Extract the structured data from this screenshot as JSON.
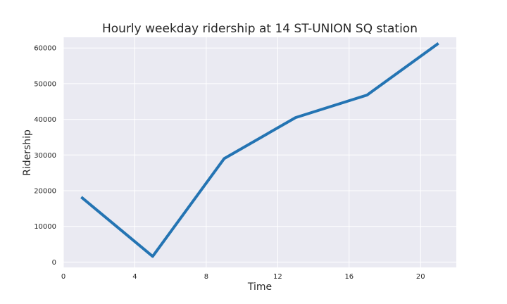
{
  "chart_data": {
    "type": "line",
    "title": "Hourly weekday ridership at 14 ST-UNION SQ station",
    "xlabel": "Time",
    "ylabel": "Ridership",
    "xlim": [
      0,
      22
    ],
    "ylim": [
      -1500,
      63000
    ],
    "xticks": [
      0,
      4,
      8,
      12,
      16,
      20
    ],
    "yticks": [
      0,
      10000,
      20000,
      30000,
      40000,
      50000,
      60000
    ],
    "grid": true,
    "series": [
      {
        "x": [
          1,
          5,
          9,
          13,
          17,
          21
        ],
        "y": [
          18200,
          1600,
          29000,
          40500,
          46800,
          61300
        ]
      }
    ],
    "colors": {
      "line": "#2474b3",
      "plot_background": "#eaeaf2",
      "grid": "#ffffff"
    }
  }
}
